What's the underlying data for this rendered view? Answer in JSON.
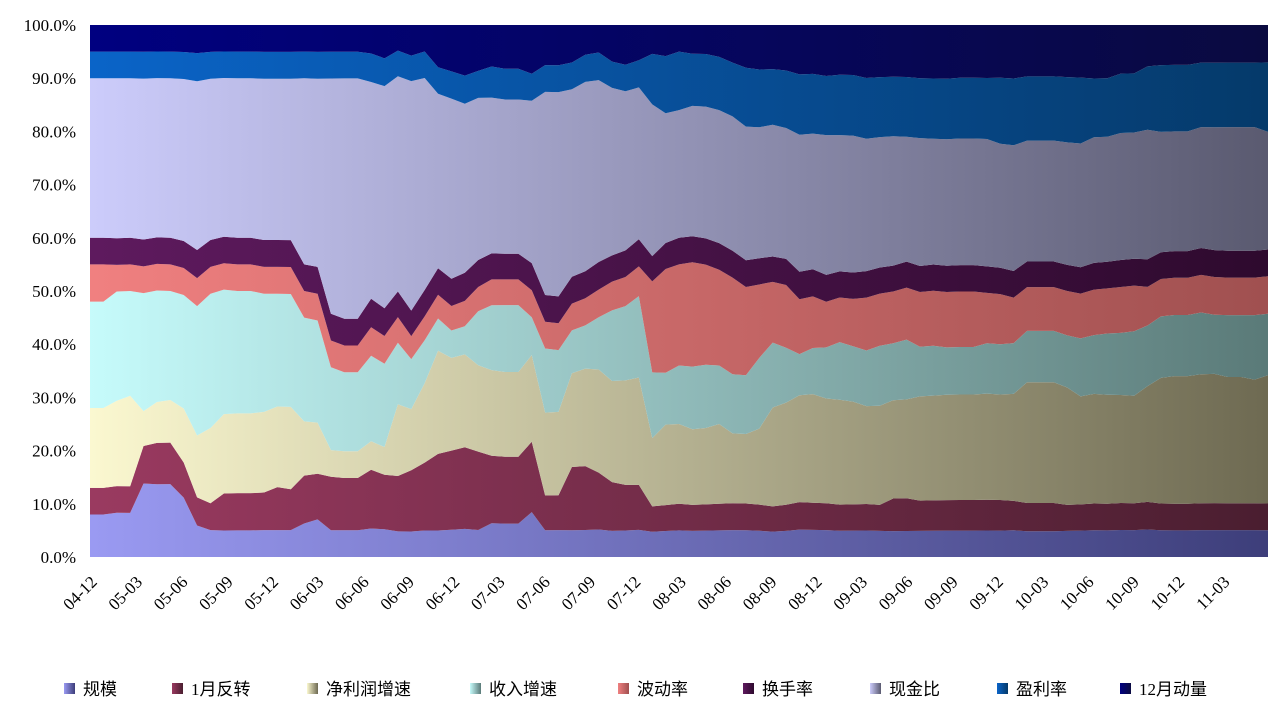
{
  "chart_data": {
    "type": "area",
    "stacked": true,
    "normalized": true,
    "ylim": [
      0,
      1
    ],
    "y_tick_labels": [
      "0.0%",
      "10.0%",
      "20.0%",
      "30.0%",
      "40.0%",
      "50.0%",
      "60.0%",
      "70.0%",
      "80.0%",
      "90.0%",
      "100.0%"
    ],
    "x_tick_labels": [
      "04-12",
      "05-03",
      "05-06",
      "05-09",
      "05-12",
      "06-03",
      "06-06",
      "06-09",
      "06-12",
      "07-03",
      "07-06",
      "07-09",
      "07-12",
      "08-03",
      "08-06",
      "08-09",
      "08-12",
      "09-03",
      "09-06",
      "09-09",
      "09-12",
      "10-03",
      "10-06",
      "10-09",
      "10-12",
      "11-03"
    ],
    "legend_position": "bottom",
    "grid": false,
    "series": [
      {
        "name": "规模",
        "color_dark": "#3d3e7a",
        "color_light": "#9a9af2",
        "values": [
          0.08,
          0.08,
          0.083,
          0.083,
          0.137,
          0.137,
          0.137,
          0.11,
          0.056,
          0.05,
          0.05,
          0.05,
          0.05,
          0.05,
          0.05,
          0.05,
          0.063,
          0.07,
          0.05,
          0.05,
          0.05,
          0.05,
          0.05,
          0.05,
          0.05,
          0.05,
          0.05,
          0.05,
          0.05,
          0.05,
          0.065,
          0.065,
          0.065,
          0.083,
          0.05,
          0.05,
          0.05,
          0.05,
          0.05,
          0.05,
          0.05,
          0.05,
          0.05,
          0.05,
          0.05,
          0.05,
          0.05,
          0.05,
          0.05,
          0.05,
          0.05,
          0.05,
          0.05,
          0.05,
          0.05,
          0.05,
          0.05,
          0.05,
          0.05,
          0.05,
          0.05,
          0.05,
          0.05,
          0.05,
          0.05,
          0.05,
          0.05,
          0.05,
          0.05,
          0.05,
          0.05,
          0.05,
          0.05,
          0.05,
          0.05,
          0.05,
          0.05,
          0.05,
          0.05,
          0.05,
          0.05,
          0.05,
          0.05,
          0.05,
          0.05,
          0.05,
          0.05,
          0.05,
          0.05
        ]
      },
      {
        "name": "1月反转",
        "color_dark": "#4a1e30",
        "color_light": "#9a3a60",
        "values": [
          0.05,
          0.05,
          0.05,
          0.05,
          0.07,
          0.078,
          0.078,
          0.065,
          0.05,
          0.05,
          0.07,
          0.07,
          0.07,
          0.07,
          0.08,
          0.076,
          0.09,
          0.085,
          0.1,
          0.098,
          0.098,
          0.103,
          0.098,
          0.108,
          0.12,
          0.128,
          0.145,
          0.145,
          0.145,
          0.145,
          0.13,
          0.13,
          0.13,
          0.13,
          0.065,
          0.065,
          0.118,
          0.118,
          0.103,
          0.093,
          0.086,
          0.083,
          0.05,
          0.05,
          0.05,
          0.05,
          0.05,
          0.05,
          0.05,
          0.05,
          0.05,
          0.05,
          0.05,
          0.05,
          0.05,
          0.05,
          0.05,
          0.05,
          0.05,
          0.05,
          0.063,
          0.063,
          0.058,
          0.058,
          0.058,
          0.058,
          0.058,
          0.058,
          0.058,
          0.055,
          0.055,
          0.055,
          0.055,
          0.05,
          0.05,
          0.05,
          0.05,
          0.05,
          0.05,
          0.05,
          0.05,
          0.05,
          0.05,
          0.05,
          0.05,
          0.05,
          0.05,
          0.05,
          0.05
        ]
      },
      {
        "name": "净利润增速",
        "color_dark": "#6e6a52",
        "color_light": "#fbf8d0",
        "values": [
          0.15,
          0.15,
          0.16,
          0.17,
          0.065,
          0.077,
          0.08,
          0.1,
          0.11,
          0.14,
          0.15,
          0.15,
          0.15,
          0.15,
          0.15,
          0.153,
          0.102,
          0.095,
          0.05,
          0.05,
          0.05,
          0.05,
          0.05,
          0.14,
          0.12,
          0.15,
          0.195,
          0.17,
          0.165,
          0.16,
          0.165,
          0.165,
          0.165,
          0.16,
          0.155,
          0.155,
          0.175,
          0.18,
          0.187,
          0.193,
          0.197,
          0.198,
          0.135,
          0.155,
          0.15,
          0.145,
          0.145,
          0.15,
          0.13,
          0.13,
          0.145,
          0.195,
          0.195,
          0.195,
          0.2,
          0.195,
          0.2,
          0.195,
          0.185,
          0.19,
          0.19,
          0.19,
          0.2,
          0.2,
          0.2,
          0.2,
          0.2,
          0.2,
          0.2,
          0.2,
          0.235,
          0.235,
          0.235,
          0.225,
          0.205,
          0.205,
          0.205,
          0.2,
          0.2,
          0.21,
          0.235,
          0.24,
          0.24,
          0.24,
          0.24,
          0.235,
          0.235,
          0.23,
          0.24
        ]
      },
      {
        "name": "收入增速",
        "color_dark": "#5a7a78",
        "color_light": "#c6fbfb",
        "values": [
          0.2,
          0.2,
          0.205,
          0.197,
          0.22,
          0.21,
          0.205,
          0.21,
          0.23,
          0.25,
          0.235,
          0.23,
          0.23,
          0.22,
          0.21,
          0.21,
          0.195,
          0.19,
          0.155,
          0.148,
          0.148,
          0.15,
          0.15,
          0.12,
          0.098,
          0.081,
          0.061,
          0.05,
          0.05,
          0.1,
          0.125,
          0.13,
          0.13,
          0.07,
          0.12,
          0.115,
          0.08,
          0.08,
          0.095,
          0.135,
          0.14,
          0.15,
          0.13,
          0.1,
          0.11,
          0.12,
          0.12,
          0.11,
          0.11,
          0.11,
          0.135,
          0.128,
          0.105,
          0.075,
          0.085,
          0.095,
          0.11,
          0.105,
          0.105,
          0.115,
          0.11,
          0.115,
          0.095,
          0.095,
          0.09,
          0.09,
          0.09,
          0.095,
          0.095,
          0.095,
          0.1,
          0.1,
          0.1,
          0.1,
          0.11,
          0.11,
          0.115,
          0.115,
          0.12,
          0.11,
          0.115,
          0.115,
          0.115,
          0.115,
          0.11,
          0.115,
          0.115,
          0.12,
          0.115
        ]
      },
      {
        "name": "波动率",
        "color_dark": "#a05050",
        "color_light": "#f08080",
        "values": [
          0.07,
          0.07,
          0.05,
          0.05,
          0.05,
          0.05,
          0.05,
          0.05,
          0.05,
          0.05,
          0.05,
          0.05,
          0.05,
          0.05,
          0.05,
          0.05,
          0.05,
          0.05,
          0.05,
          0.05,
          0.05,
          0.05,
          0.05,
          0.05,
          0.045,
          0.045,
          0.045,
          0.045,
          0.045,
          0.045,
          0.05,
          0.05,
          0.05,
          0.05,
          0.05,
          0.05,
          0.05,
          0.05,
          0.05,
          0.055,
          0.055,
          0.055,
          0.18,
          0.2,
          0.19,
          0.2,
          0.19,
          0.18,
          0.18,
          0.165,
          0.14,
          0.12,
          0.12,
          0.1,
          0.095,
          0.085,
          0.085,
          0.09,
          0.1,
          0.1,
          0.1,
          0.1,
          0.105,
          0.105,
          0.105,
          0.105,
          0.105,
          0.095,
          0.095,
          0.085,
          0.085,
          0.085,
          0.085,
          0.085,
          0.085,
          0.085,
          0.085,
          0.085,
          0.085,
          0.07,
          0.07,
          0.07,
          0.07,
          0.07,
          0.07,
          0.07,
          0.07,
          0.07,
          0.07
        ]
      },
      {
        "name": "换手率",
        "color_dark": "#2e0a2e",
        "color_light": "#5e1a5e",
        "values": [
          0.05,
          0.05,
          0.05,
          0.05,
          0.05,
          0.05,
          0.05,
          0.05,
          0.05,
          0.05,
          0.05,
          0.05,
          0.05,
          0.05,
          0.05,
          0.05,
          0.05,
          0.05,
          0.05,
          0.05,
          0.05,
          0.05,
          0.05,
          0.05,
          0.05,
          0.05,
          0.05,
          0.05,
          0.05,
          0.05,
          0.05,
          0.05,
          0.05,
          0.05,
          0.05,
          0.05,
          0.05,
          0.05,
          0.05,
          0.05,
          0.05,
          0.05,
          0.05,
          0.05,
          0.05,
          0.05,
          0.05,
          0.05,
          0.05,
          0.05,
          0.05,
          0.05,
          0.05,
          0.05,
          0.05,
          0.05,
          0.05,
          0.05,
          0.05,
          0.05,
          0.05,
          0.05,
          0.05,
          0.05,
          0.05,
          0.05,
          0.05,
          0.05,
          0.05,
          0.05,
          0.05,
          0.05,
          0.05,
          0.05,
          0.05,
          0.05,
          0.05,
          0.05,
          0.05,
          0.05,
          0.05,
          0.05,
          0.05,
          0.05,
          0.05,
          0.05,
          0.05,
          0.05,
          0.05
        ]
      },
      {
        "name": "现金比",
        "color_dark": "#5a5a70",
        "color_light": "#ccccfb",
        "values": [
          0.3,
          0.3,
          0.3,
          0.3,
          0.3,
          0.3,
          0.3,
          0.3,
          0.3,
          0.3,
          0.3,
          0.3,
          0.3,
          0.3,
          0.3,
          0.3,
          0.35,
          0.35,
          0.44,
          0.45,
          0.45,
          0.38,
          0.4,
          0.42,
          0.45,
          0.4,
          0.33,
          0.33,
          0.3,
          0.3,
          0.3,
          0.3,
          0.3,
          0.3,
          0.38,
          0.38,
          0.35,
          0.35,
          0.33,
          0.32,
          0.3,
          0.28,
          0.3,
          0.25,
          0.24,
          0.25,
          0.25,
          0.25,
          0.25,
          0.25,
          0.25,
          0.26,
          0.25,
          0.25,
          0.25,
          0.26,
          0.26,
          0.26,
          0.25,
          0.25,
          0.25,
          0.24,
          0.245,
          0.24,
          0.24,
          0.24,
          0.24,
          0.24,
          0.235,
          0.235,
          0.235,
          0.235,
          0.235,
          0.235,
          0.235,
          0.235,
          0.235,
          0.235,
          0.235,
          0.235,
          0.225,
          0.225,
          0.225,
          0.225,
          0.228,
          0.23,
          0.23,
          0.23,
          0.22
        ]
      },
      {
        "name": "盈利率",
        "color_dark": "#053a6a",
        "color_light": "#0a64c8",
        "values": [
          0.05,
          0.05,
          0.05,
          0.05,
          0.05,
          0.05,
          0.05,
          0.05,
          0.05,
          0.05,
          0.05,
          0.05,
          0.05,
          0.05,
          0.05,
          0.05,
          0.05,
          0.05,
          0.05,
          0.05,
          0.05,
          0.05,
          0.05,
          0.05,
          0.05,
          0.05,
          0.05,
          0.05,
          0.05,
          0.05,
          0.06,
          0.06,
          0.06,
          0.05,
          0.05,
          0.05,
          0.05,
          0.05,
          0.05,
          0.05,
          0.05,
          0.05,
          0.1,
          0.11,
          0.11,
          0.1,
          0.1,
          0.1,
          0.1,
          0.11,
          0.11,
          0.11,
          0.11,
          0.11,
          0.11,
          0.11,
          0.115,
          0.115,
          0.115,
          0.115,
          0.115,
          0.115,
          0.115,
          0.115,
          0.115,
          0.115,
          0.115,
          0.115,
          0.125,
          0.125,
          0.125,
          0.125,
          0.125,
          0.125,
          0.125,
          0.11,
          0.11,
          0.11,
          0.11,
          0.115,
          0.125,
          0.125,
          0.125,
          0.12,
          0.12,
          0.12,
          0.12,
          0.12,
          0.13
        ]
      },
      {
        "name": "12月动量",
        "color_dark": "#0a0a40",
        "color_light": "#000080",
        "values": [
          0.05,
          0.05,
          0.05,
          0.05,
          0.05,
          0.05,
          0.05,
          0.05,
          0.05,
          0.05,
          0.05,
          0.05,
          0.05,
          0.05,
          0.05,
          0.05,
          0.05,
          0.05,
          0.05,
          0.05,
          0.05,
          0.05,
          0.06,
          0.05,
          0.06,
          0.05,
          0.08,
          0.085,
          0.09,
          0.085,
          0.08,
          0.085,
          0.085,
          0.09,
          0.075,
          0.075,
          0.07,
          0.055,
          0.05,
          0.07,
          0.075,
          0.065,
          0.057,
          0.06,
          0.05,
          0.055,
          0.055,
          0.06,
          0.07,
          0.08,
          0.085,
          0.087,
          0.087,
          0.09,
          0.09,
          0.095,
          0.095,
          0.095,
          0.1,
          0.1,
          0.1,
          0.1,
          0.102,
          0.102,
          0.102,
          0.1,
          0.1,
          0.1,
          0.1,
          0.1,
          0.1,
          0.1,
          0.1,
          0.1,
          0.1,
          0.1,
          0.1,
          0.09,
          0.09,
          0.075,
          0.075,
          0.075,
          0.075,
          0.07,
          0.07,
          0.07,
          0.07,
          0.07,
          0.07
        ]
      }
    ]
  }
}
